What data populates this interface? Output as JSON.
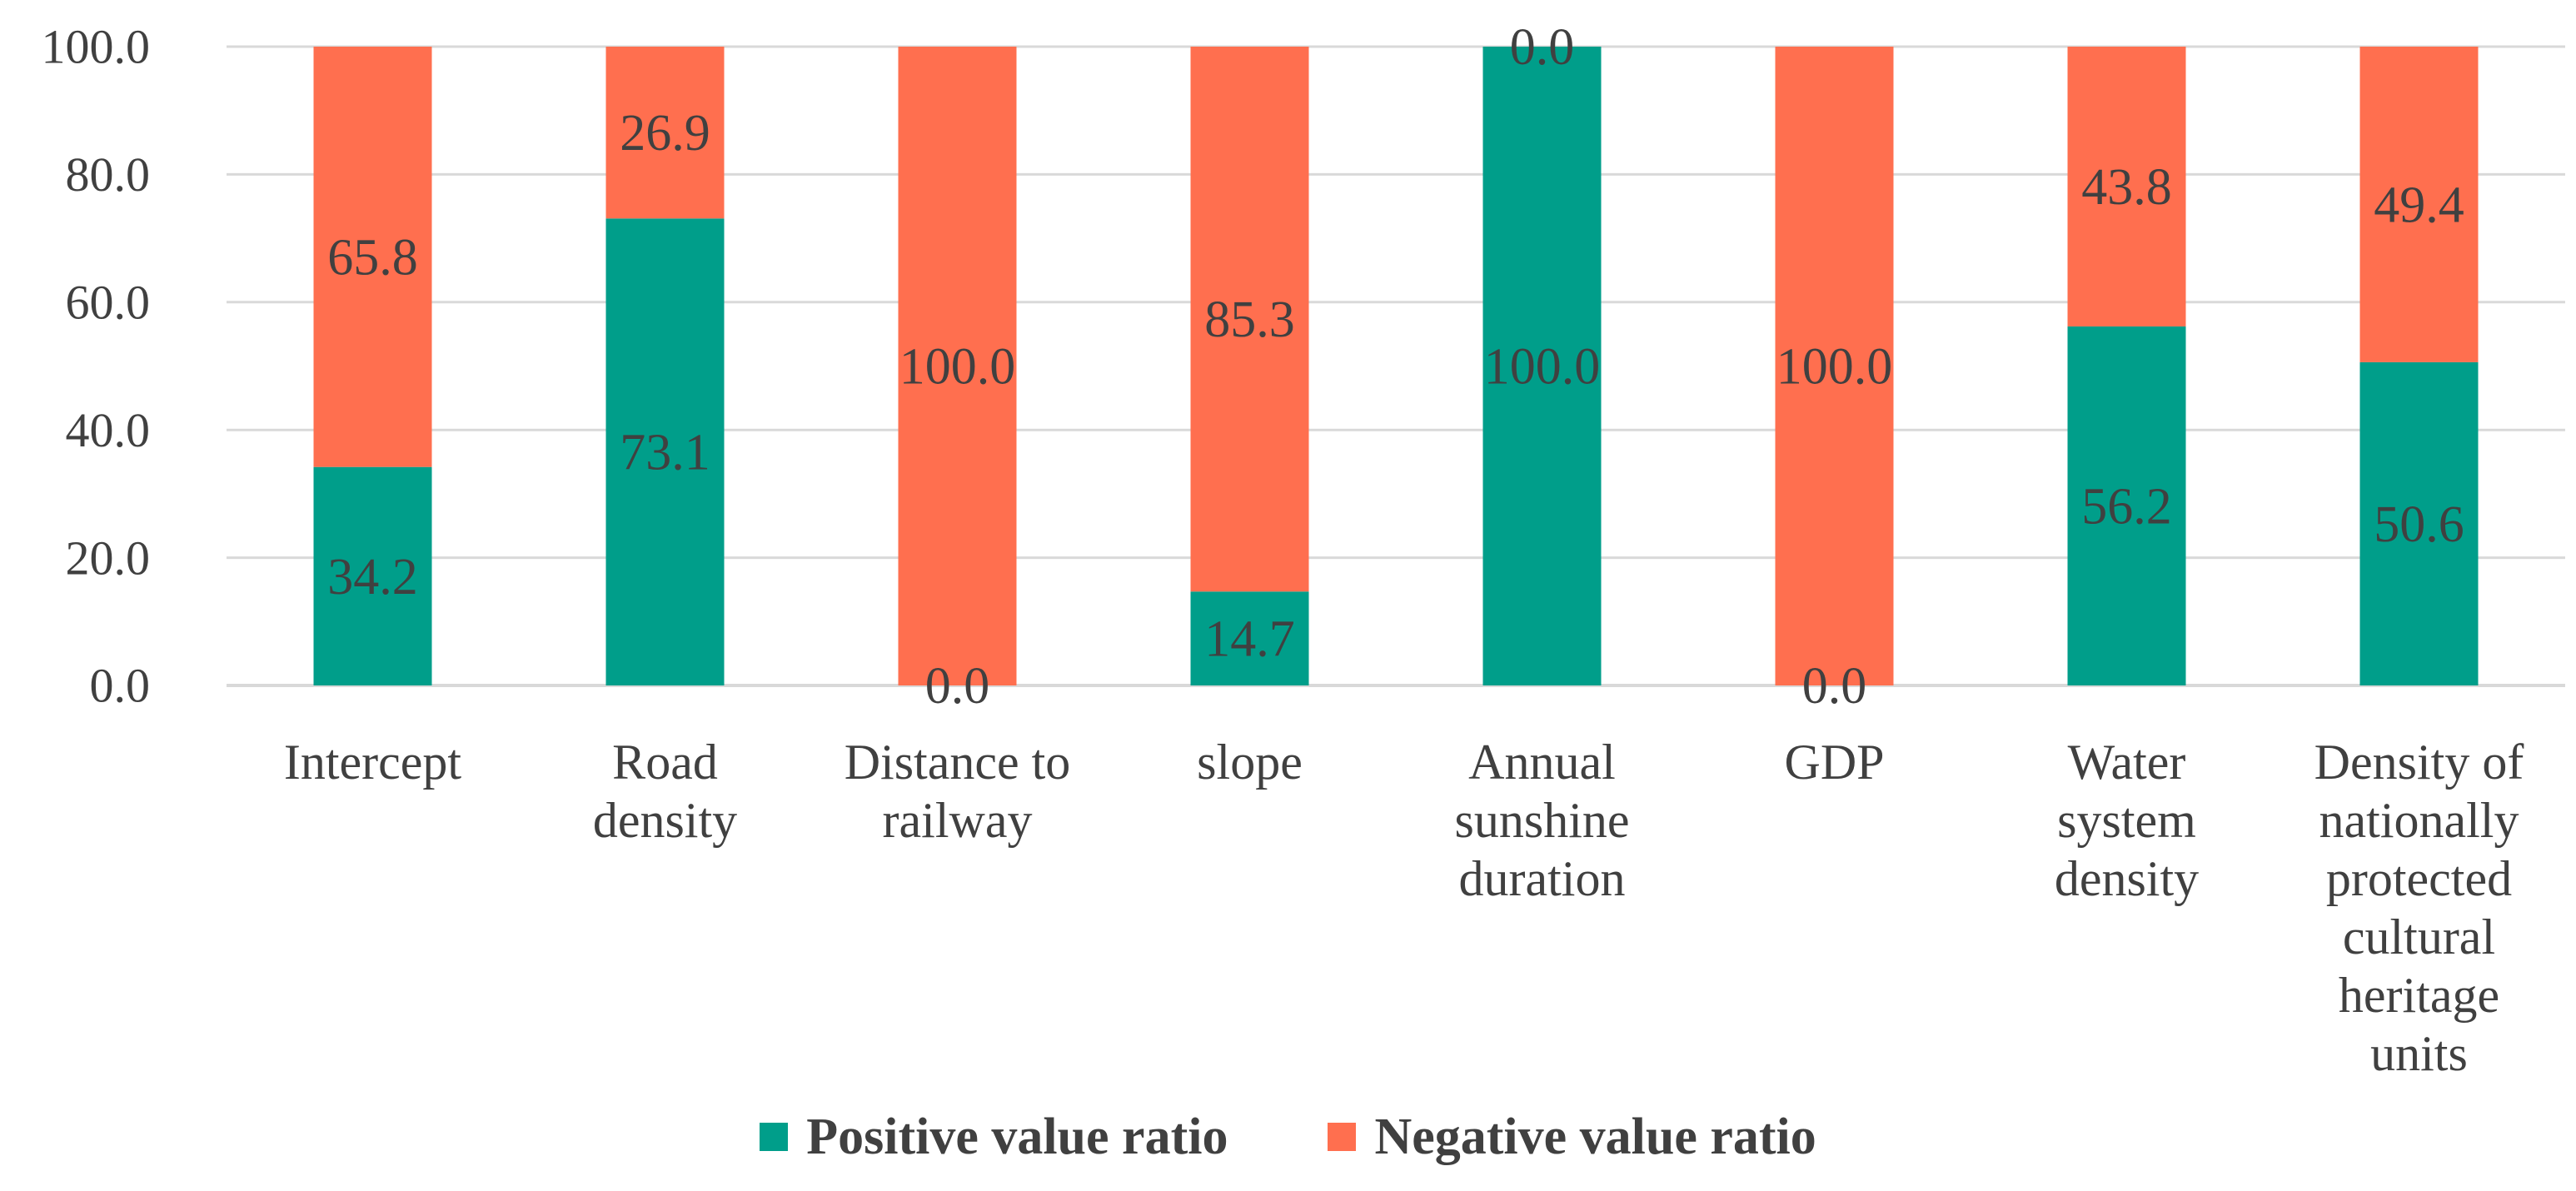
{
  "chart_data": {
    "type": "bar",
    "stacked": true,
    "title": "",
    "xlabel": "",
    "ylabel": "",
    "ylim": [
      0,
      100
    ],
    "yticks": [
      "0.0",
      "20.0",
      "40.0",
      "60.0",
      "80.0",
      "100.0"
    ],
    "grid": true,
    "legend_position": "bottom",
    "categories": [
      [
        "Intercept"
      ],
      [
        "Road",
        "density"
      ],
      [
        "Distance to",
        "railway"
      ],
      [
        "slope"
      ],
      [
        "Annual",
        "sunshine",
        "duration"
      ],
      [
        "GDP"
      ],
      [
        "Water",
        "system",
        "density"
      ],
      [
        "Density of",
        "nationally",
        "protected",
        "cultural",
        "heritage",
        "units"
      ]
    ],
    "series": [
      {
        "name": "Positive value ratio",
        "color": "#009E8A",
        "values": [
          34.2,
          73.1,
          0.0,
          14.7,
          100.0,
          0.0,
          56.2,
          50.6
        ],
        "labels": [
          "34.2",
          "73.1",
          "0.0",
          "14.7",
          "100.0",
          "0.0",
          "56.2",
          "50.6"
        ]
      },
      {
        "name": "Negative value ratio",
        "color": "#FF6F4F",
        "values": [
          65.8,
          26.9,
          100.0,
          85.3,
          0.0,
          100.0,
          43.8,
          49.4
        ],
        "labels": [
          "65.8",
          "26.9",
          "100.0",
          "85.3",
          "0.0",
          "100.0",
          "43.8",
          "49.4"
        ]
      }
    ]
  }
}
